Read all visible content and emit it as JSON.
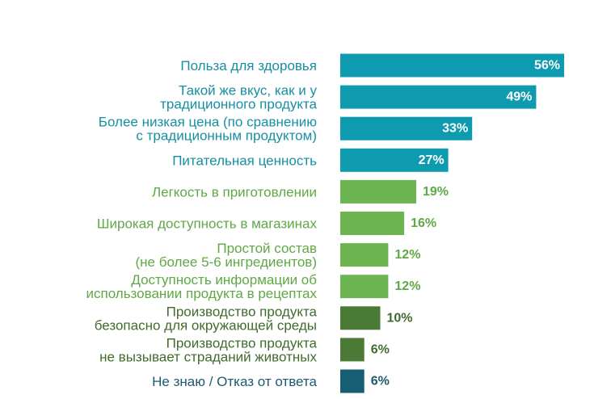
{
  "chart_data": {
    "type": "bar",
    "orientation": "horizontal",
    "categories": [
      [
        "Польза для здоровья"
      ],
      [
        "Такой же вкус, как и у",
        "традиционного продукта"
      ],
      [
        "Более низкая цена (по сравнению",
        "с традиционным продуктом)"
      ],
      [
        "Питательная ценность"
      ],
      [
        "Легкость в приготовлении"
      ],
      [
        "Широкая доступность в магазинах"
      ],
      [
        "Простой состав",
        "(не более 5-6 ингредиентов)"
      ],
      [
        "Доступность информации об",
        "использовании продукта в рецептах"
      ],
      [
        "Производство продукта",
        "безопасно для окружающей среды"
      ],
      [
        "Производство продукта",
        "не вызывает страданий животных"
      ],
      [
        "Не знаю / Отказ от ответа"
      ]
    ],
    "values": [
      56,
      49,
      33,
      27,
      19,
      16,
      12,
      12,
      10,
      6,
      6
    ],
    "value_labels": [
      "56%",
      "49%",
      "33%",
      "27%",
      "19%",
      "16%",
      "12%",
      "12%",
      "10%",
      "6%",
      "6%"
    ],
    "groups": [
      "teal",
      "teal",
      "teal",
      "teal",
      "light-green",
      "light-green",
      "light-green",
      "light-green",
      "dark-green",
      "dark-green",
      "dark-teal"
    ],
    "colors": {
      "teal": "#0E9BB0",
      "light-green": "#6DB551",
      "dark-green": "#4B7A36",
      "dark-teal": "#175E74"
    },
    "label_colors": {
      "teal": "#168FA3",
      "light-green": "#5FA846",
      "dark-green": "#3F6B2C",
      "dark-teal": "#1B5A70"
    },
    "xlim": [
      0,
      56
    ],
    "grid": false,
    "legend": "none"
  }
}
